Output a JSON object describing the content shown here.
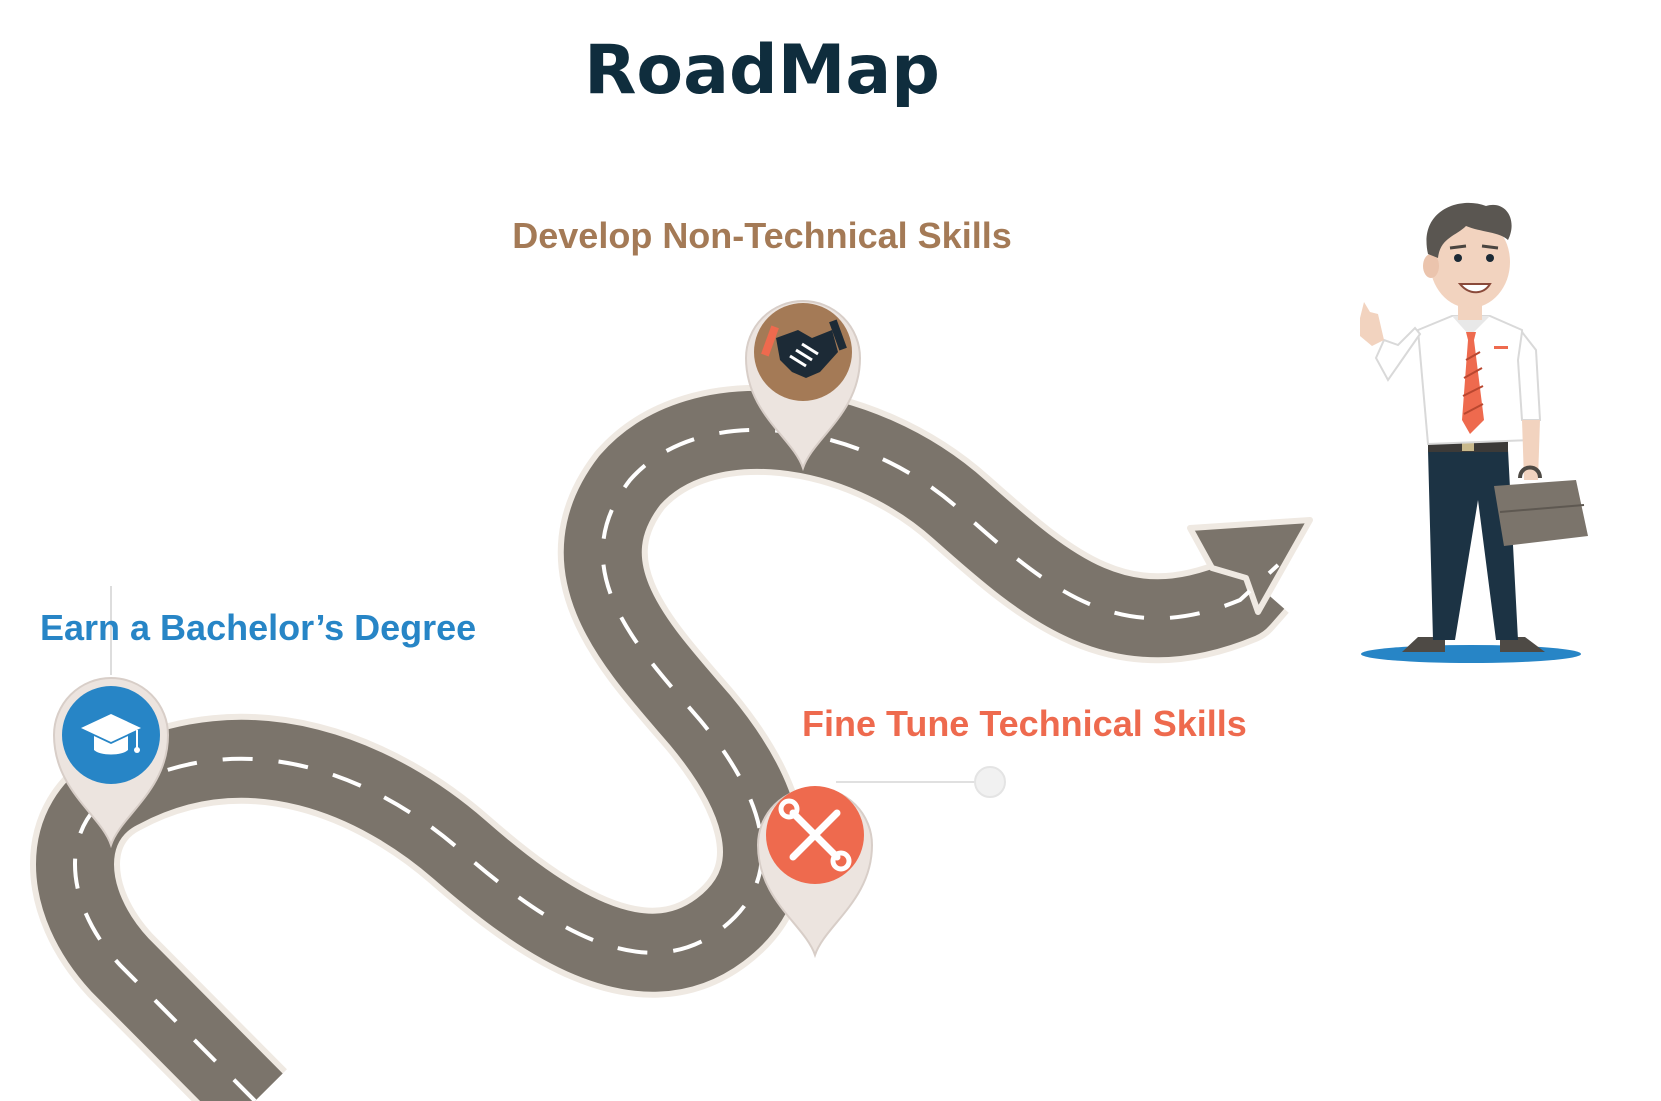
{
  "title": "RoadMap",
  "steps": [
    {
      "label": "Earn a Bachelor’s Degree",
      "icon": "graduation-cap-icon",
      "color": "#2785c6"
    },
    {
      "label": "Fine Tune Technical Skills",
      "icon": "wrench-screwdriver-icon",
      "color": "#ee6a4e"
    },
    {
      "label": "Develop Non-Technical  Skills",
      "icon": "handshake-icon",
      "color": "#a47a56"
    }
  ],
  "colors": {
    "title": "#0f2d3d",
    "road": "#7b746b",
    "road_edge": "#efe9e2",
    "road_dash": "#ffffff",
    "pin_rim": "#ece4df"
  }
}
